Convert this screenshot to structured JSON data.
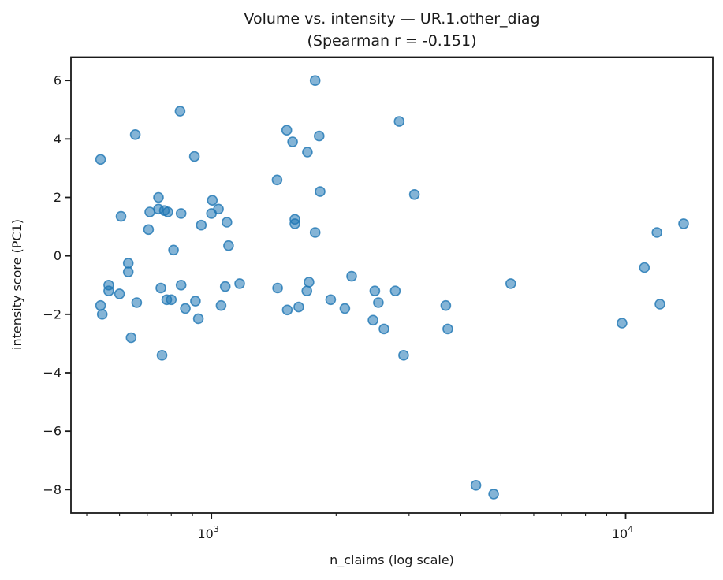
{
  "chart_data": {
    "type": "scatter",
    "title": "Volume vs. intensity — UR.1.other_diag",
    "subtitle": "(Spearman r = -0.151)",
    "xlabel": "n_claims (log scale)",
    "ylabel": "intensity score (PC1)",
    "x_scale": "log",
    "grid": false,
    "legend": "none",
    "xlim": [
      458,
      16230
    ],
    "ylim": [
      -8.8,
      6.8
    ],
    "x_major_ticks": [
      {
        "value": 1000,
        "base": "10",
        "exp": "3"
      },
      {
        "value": 10000,
        "base": "10",
        "exp": "4"
      }
    ],
    "x_minor_ticks": [
      500,
      600,
      700,
      800,
      900,
      2000,
      3000,
      4000,
      5000,
      6000,
      7000,
      8000,
      9000
    ],
    "y_ticks": [
      {
        "value": 6,
        "label": "6"
      },
      {
        "value": 4,
        "label": "4"
      },
      {
        "value": 2,
        "label": "2"
      },
      {
        "value": 0,
        "label": "0"
      },
      {
        "value": -2,
        "label": "−2"
      },
      {
        "value": -4,
        "label": "−4"
      },
      {
        "value": -6,
        "label": "−6"
      },
      {
        "value": -8,
        "label": "−8"
      }
    ],
    "marker": {
      "shape": "circle",
      "radius": 6,
      "fill": "#1f77b4",
      "fill_opacity": 0.55,
      "stroke": "#1f77b4",
      "stroke_opacity": 0.8,
      "stroke_width": 1.6
    },
    "axis_color": "#1a1a1a",
    "points": [
      [
        1780,
        6.0
      ],
      [
        840,
        4.95
      ],
      [
        2840,
        4.6
      ],
      [
        655,
        4.15
      ],
      [
        1520,
        4.3
      ],
      [
        1820,
        4.1
      ],
      [
        1570,
        3.9
      ],
      [
        1705,
        3.55
      ],
      [
        910,
        3.4
      ],
      [
        540,
        3.3
      ],
      [
        1440,
        2.6
      ],
      [
        1830,
        2.2
      ],
      [
        3090,
        2.1
      ],
      [
        745,
        2.0
      ],
      [
        1005,
        1.9
      ],
      [
        745,
        1.6
      ],
      [
        1040,
        1.6
      ],
      [
        770,
        1.55
      ],
      [
        710,
        1.5
      ],
      [
        785,
        1.5
      ],
      [
        845,
        1.45
      ],
      [
        1000,
        1.45
      ],
      [
        605,
        1.35
      ],
      [
        1590,
        1.25
      ],
      [
        1090,
        1.15
      ],
      [
        1590,
        1.1
      ],
      [
        13800,
        1.1
      ],
      [
        945,
        1.05
      ],
      [
        705,
        0.9
      ],
      [
        1780,
        0.8
      ],
      [
        11900,
        0.8
      ],
      [
        1100,
        0.35
      ],
      [
        810,
        0.2
      ],
      [
        630,
        -0.25
      ],
      [
        11100,
        -0.4
      ],
      [
        630,
        -0.55
      ],
      [
        2180,
        -0.7
      ],
      [
        1720,
        -0.9
      ],
      [
        1170,
        -0.95
      ],
      [
        5280,
        -0.95
      ],
      [
        565,
        -1.0
      ],
      [
        845,
        -1.0
      ],
      [
        1080,
        -1.05
      ],
      [
        755,
        -1.1
      ],
      [
        1445,
        -1.1
      ],
      [
        565,
        -1.2
      ],
      [
        1700,
        -1.2
      ],
      [
        2480,
        -1.2
      ],
      [
        2780,
        -1.2
      ],
      [
        600,
        -1.3
      ],
      [
        780,
        -1.5
      ],
      [
        800,
        -1.5
      ],
      [
        1940,
        -1.5
      ],
      [
        915,
        -1.55
      ],
      [
        660,
        -1.6
      ],
      [
        2530,
        -1.6
      ],
      [
        12100,
        -1.65
      ],
      [
        540,
        -1.7
      ],
      [
        1055,
        -1.7
      ],
      [
        3680,
        -1.7
      ],
      [
        1625,
        -1.75
      ],
      [
        2100,
        -1.8
      ],
      [
        865,
        -1.8
      ],
      [
        1525,
        -1.85
      ],
      [
        545,
        -2.0
      ],
      [
        930,
        -2.15
      ],
      [
        2455,
        -2.2
      ],
      [
        9800,
        -2.3
      ],
      [
        2610,
        -2.5
      ],
      [
        3720,
        -2.5
      ],
      [
        640,
        -2.8
      ],
      [
        760,
        -3.4
      ],
      [
        2910,
        -3.4
      ],
      [
        4350,
        -7.85
      ],
      [
        4800,
        -8.15
      ]
    ]
  }
}
